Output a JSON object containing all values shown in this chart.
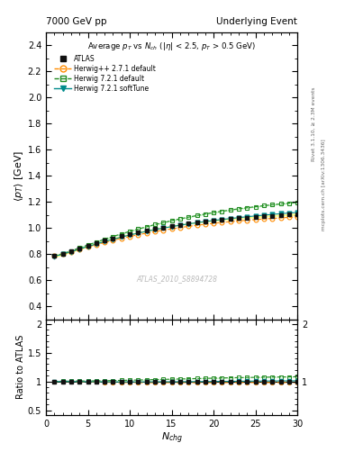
{
  "title_left": "7000 GeV pp",
  "title_right": "Underlying Event",
  "plot_title": "Average $p_T$ vs $N_{ch}$ ($|\\eta|$ < 2.5, $p_T$ > 0.5 GeV)",
  "xlabel": "$N_{chg}$",
  "ylabel_main": "$\\langle p_T \\rangle$ [GeV]",
  "ylabel_ratio": "Ratio to ATLAS",
  "right_label_top": "Rivet 3.1.10, ≥ 2.3M events",
  "right_label_bottom": "mcplots.cern.ch [arXiv:1306.3436]",
  "watermark": "ATLAS_2010_S8894728",
  "xlim": [
    0,
    30
  ],
  "ylim_main": [
    0.3,
    2.5
  ],
  "ylim_ratio": [
    0.42,
    2.08
  ],
  "yticks_main": [
    0.4,
    0.6,
    0.8,
    1.0,
    1.2,
    1.4,
    1.6,
    1.8,
    2.0,
    2.2,
    2.4
  ],
  "yticks_ratio_left": [
    0.5,
    1.0,
    1.5,
    2.0
  ],
  "yticks_ratio_right": [
    0.5,
    1.0,
    2.0
  ],
  "nch": [
    1,
    2,
    3,
    4,
    5,
    6,
    7,
    8,
    9,
    10,
    11,
    12,
    13,
    14,
    15,
    16,
    17,
    18,
    19,
    20,
    21,
    22,
    23,
    24,
    25,
    26,
    27,
    28,
    29,
    30
  ],
  "atlas_y": [
    0.785,
    0.8,
    0.82,
    0.84,
    0.862,
    0.882,
    0.902,
    0.92,
    0.937,
    0.952,
    0.967,
    0.98,
    0.993,
    1.004,
    1.015,
    1.025,
    1.034,
    1.042,
    1.05,
    1.057,
    1.063,
    1.069,
    1.075,
    1.08,
    1.085,
    1.09,
    1.094,
    1.098,
    1.102,
    1.106
  ],
  "atlas_yerr": [
    0.012,
    0.009,
    0.008,
    0.007,
    0.007,
    0.006,
    0.006,
    0.006,
    0.006,
    0.006,
    0.006,
    0.006,
    0.006,
    0.006,
    0.006,
    0.006,
    0.006,
    0.006,
    0.006,
    0.006,
    0.006,
    0.006,
    0.006,
    0.006,
    0.007,
    0.007,
    0.007,
    0.007,
    0.008,
    0.009
  ],
  "herwig_pp_y": [
    0.784,
    0.8,
    0.818,
    0.836,
    0.854,
    0.872,
    0.889,
    0.905,
    0.92,
    0.934,
    0.948,
    0.96,
    0.972,
    0.983,
    0.993,
    1.003,
    1.012,
    1.02,
    1.028,
    1.035,
    1.042,
    1.048,
    1.054,
    1.059,
    1.064,
    1.069,
    1.073,
    1.077,
    1.081,
    1.085
  ],
  "herwig721_y": [
    0.785,
    0.804,
    0.825,
    0.847,
    0.87,
    0.892,
    0.914,
    0.935,
    0.955,
    0.974,
    0.992,
    1.009,
    1.026,
    1.041,
    1.056,
    1.07,
    1.083,
    1.095,
    1.107,
    1.118,
    1.128,
    1.138,
    1.147,
    1.155,
    1.163,
    1.171,
    1.178,
    1.184,
    1.19,
    1.196
  ],
  "herwig721_soft_y": [
    0.783,
    0.799,
    0.818,
    0.838,
    0.858,
    0.877,
    0.896,
    0.913,
    0.93,
    0.946,
    0.96,
    0.974,
    0.987,
    0.999,
    1.01,
    1.021,
    1.031,
    1.04,
    1.049,
    1.057,
    1.065,
    1.072,
    1.079,
    1.086,
    1.092,
    1.098,
    1.104,
    1.109,
    1.114,
    1.119
  ],
  "atlas_color": "#111111",
  "herwig_pp_color": "#FF8C00",
  "herwig721_color": "#228B22",
  "herwig721_soft_color": "#008B8B",
  "atlas_band_color": "#FFFF88",
  "herwig721_band_color": "#88EE88",
  "background_color": "#ffffff"
}
